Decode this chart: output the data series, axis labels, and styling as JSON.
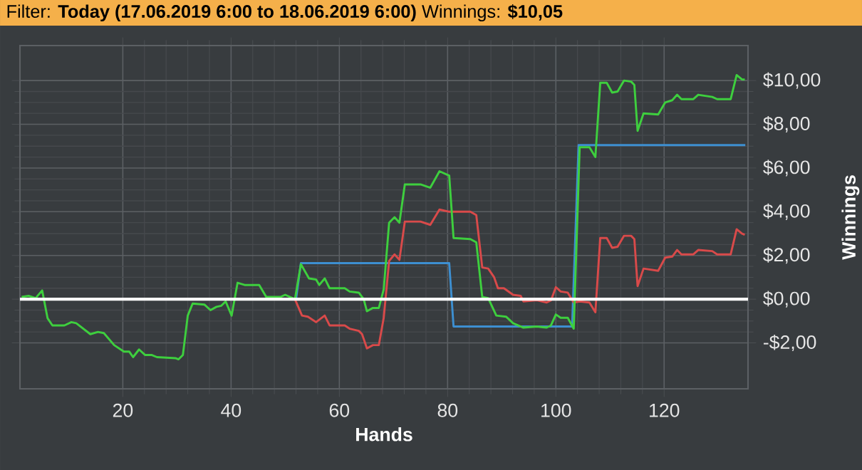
{
  "chart_data": {
    "type": "line",
    "title": "Filter: **Today (17.06.2019 6:00 to 18.06.2019 6:00)** Winnings: **$10,05**",
    "xlabel": "Hands",
    "ylabel": "Winnings",
    "xlim": [
      1,
      135.5
    ],
    "ylim": [
      -4.1,
      11.6
    ],
    "xticks": [
      20,
      40,
      60,
      80,
      100,
      120
    ],
    "yticks": [
      {
        "value": -2,
        "label": "-$2,00"
      },
      {
        "value": 0,
        "label": "$0,00"
      },
      {
        "value": 2,
        "label": "$2,00"
      },
      {
        "value": 4,
        "label": "$4,00"
      },
      {
        "value": 6,
        "label": "$6,00"
      },
      {
        "value": 8,
        "label": "$8,00"
      },
      {
        "value": 10,
        "label": "$10,00"
      }
    ],
    "grid": true,
    "legend": false,
    "marker": "none",
    "line_style": "solid",
    "ref_lines": [
      {
        "axis": "y",
        "value": 0,
        "color": "#ffffff"
      }
    ],
    "series": [
      {
        "color": "#3d8fd1",
        "x": [
          52,
          52.9,
          80.3,
          81.1,
          103,
          104.2,
          135
        ],
        "values": [
          0,
          1.65,
          1.65,
          -1.25,
          -1.25,
          7.05,
          7.05
        ]
      },
      {
        "color": "#d94a4a",
        "x": [
          51.8,
          53.1,
          54.2,
          55.7,
          57.3,
          58.2,
          61,
          61.9,
          63.6,
          64.2,
          65.1,
          66.2,
          67.3,
          68.2,
          69.2,
          70.2,
          71.1,
          72.1,
          75,
          76.8,
          78.5,
          80.3,
          84.2,
          85.3,
          86.4,
          87.5,
          88.6,
          89.3,
          90.4,
          92.1,
          93.5,
          94,
          96.5,
          98.3,
          99.1,
          100,
          100.9,
          102.2,
          103.3,
          104.4,
          106.2,
          107.3,
          108.2,
          109.4,
          110.4,
          111.4,
          112.6,
          113.9,
          114.5,
          115.1,
          116.2,
          118.9,
          120.2,
          121.5,
          122.4,
          123.2,
          125.4,
          126.3,
          128.9,
          129.8,
          132.3,
          133.4,
          134.4,
          134.9
        ],
        "values": [
          0,
          -0.75,
          -0.8,
          -1.05,
          -0.75,
          -1.2,
          -1.2,
          -1.35,
          -1.45,
          -1.6,
          -2.25,
          -2.1,
          -2.1,
          -0.85,
          1.75,
          2.05,
          1.8,
          3.55,
          3.55,
          3.4,
          4.1,
          4.0,
          4.0,
          3.85,
          1.45,
          1.4,
          1.0,
          0.5,
          0.5,
          0.2,
          0.15,
          -0.1,
          -0.05,
          -0.15,
          -0.05,
          0.55,
          0.35,
          0.3,
          -0.15,
          -0.1,
          -0.15,
          -0.6,
          2.8,
          2.8,
          2.35,
          2.4,
          2.9,
          2.9,
          2.75,
          0.6,
          1.4,
          1.3,
          1.9,
          1.95,
          2.25,
          2.05,
          2.05,
          2.25,
          2.2,
          2.05,
          2.05,
          3.2,
          3.0,
          2.95
        ]
      },
      {
        "color": "#3ecf3e",
        "x": [
          1.3,
          2.6,
          3.9,
          5.1,
          6.1,
          7.0,
          9.2,
          10.5,
          11.4,
          14,
          15.4,
          16.5,
          18.4,
          20.2,
          21.2,
          21.9,
          23,
          24.1,
          25.3,
          26.3,
          29.8,
          30.3,
          31.1,
          32,
          32.9,
          35.1,
          36.2,
          37.3,
          38.2,
          39,
          40.1,
          41.2,
          42.5,
          45.2,
          46.5,
          49.1,
          50,
          51.8,
          52.9,
          54.4,
          55.7,
          56.3,
          57.3,
          58.2,
          61,
          61.9,
          63.6,
          64.5,
          65.1,
          66.2,
          67.3,
          68.2,
          69.2,
          70.2,
          71.1,
          72.1,
          75,
          76.8,
          78.5,
          80.3,
          81.1,
          84.2,
          85.3,
          86.4,
          87.5,
          89,
          90.8,
          92.1,
          94,
          96.5,
          98.3,
          99.1,
          100,
          100.9,
          102.2,
          103.3,
          104.4,
          106.2,
          107.3,
          108.2,
          109.4,
          110.4,
          111.4,
          112.6,
          113.9,
          114.5,
          115.1,
          116.2,
          118.9,
          120.2,
          121.5,
          122.4,
          123.2,
          125.4,
          126.3,
          128.9,
          129.8,
          132.3,
          133.4,
          134.4,
          134.9
        ],
        "values": [
          0.1,
          0.15,
          0.05,
          0.4,
          -0.87,
          -1.2,
          -1.2,
          -1.05,
          -1.1,
          -1.6,
          -1.5,
          -1.55,
          -2.1,
          -2.4,
          -2.4,
          -2.65,
          -2.3,
          -2.55,
          -2.55,
          -2.65,
          -2.7,
          -2.75,
          -2.55,
          -0.75,
          -0.2,
          -0.25,
          -0.5,
          -0.35,
          -0.3,
          -0.1,
          -0.75,
          0.75,
          0.65,
          0.65,
          0.1,
          0.1,
          0.2,
          0,
          1.6,
          0.95,
          0.9,
          0.65,
          0.95,
          0.5,
          0.5,
          0.35,
          0.3,
          0,
          -0.55,
          -0.4,
          -0.4,
          0.45,
          3.5,
          3.75,
          3.5,
          5.25,
          5.25,
          5.1,
          5.85,
          5.65,
          2.8,
          2.75,
          2.6,
          0.1,
          0.05,
          -0.75,
          -0.8,
          -1.1,
          -1.3,
          -1.25,
          -1.3,
          -1.2,
          -0.7,
          -0.85,
          -0.85,
          -1.35,
          6.95,
          6.95,
          6.5,
          9.9,
          9.9,
          9.45,
          9.5,
          10.0,
          9.95,
          9.8,
          7.7,
          8.5,
          8.45,
          9.0,
          9.1,
          9.35,
          9.15,
          9.15,
          9.35,
          9.25,
          9.15,
          9.15,
          10.25,
          10.05,
          10.05
        ]
      }
    ]
  }
}
